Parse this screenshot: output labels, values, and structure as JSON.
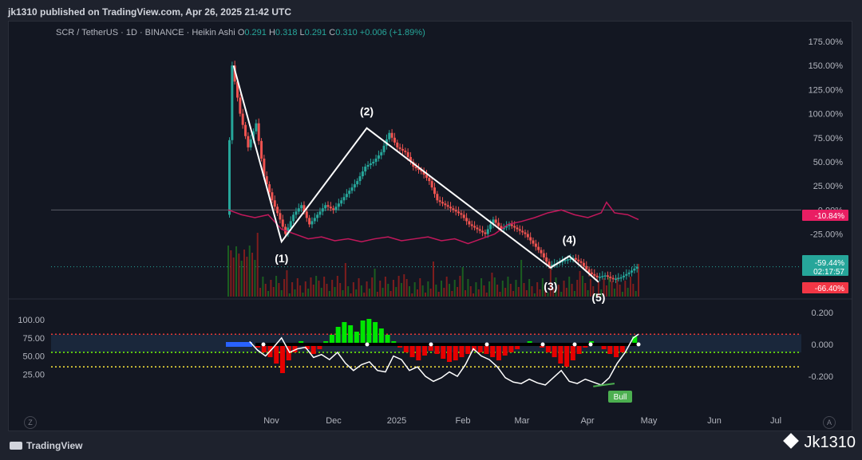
{
  "header": {
    "published": "jk1310 published on TradingView.com, Apr 26, 2025 21:42 UTC"
  },
  "legend": {
    "symbol": "SCR / TetherUS · 1D · BINANCE · Heikin Ashi",
    "o_label": "O",
    "o": "0.291",
    "h_label": "H",
    "h": "0.318",
    "l_label": "L",
    "l": "0.291",
    "c_label": "C",
    "c": "0.310",
    "change": "+0.006 (+1.89%)"
  },
  "footer": {
    "brand": "TradingView",
    "watermark": "Jk1310"
  },
  "corner_buttons": {
    "left": "Z",
    "right": "A"
  },
  "colors": {
    "bull": "#26a69a",
    "bear": "#ef5350",
    "rsi_line": "#ffffff",
    "compare_line": "#c2185b",
    "hist_up": "#00e600",
    "hist_down": "#e60000",
    "price_badge": "#26a69a"
  },
  "chart_data": [
    {
      "type": "line",
      "title": "",
      "style": "heikin-ashi candles with Elliott wave overlay",
      "y_axis": {
        "position": "right",
        "unit": "%",
        "range": [
          -90,
          180
        ],
        "ticks": [
          "175.00%",
          "150.00%",
          "125.00%",
          "100.00%",
          "75.00%",
          "50.00%",
          "25.00%",
          "0.00%",
          "-25.00%",
          "-50.00%"
        ]
      },
      "x_axis": {
        "ticks": [
          "Nov",
          "Dec",
          "2025",
          "Feb",
          "Mar",
          "Apr",
          "May",
          "Jun",
          "Jul"
        ]
      },
      "price_series": {
        "unit": "%",
        "points": [
          [
            0,
            -5
          ],
          [
            2,
            150
          ],
          [
            5,
            100
          ],
          [
            8,
            65
          ],
          [
            11,
            90
          ],
          [
            14,
            35
          ],
          [
            17,
            10
          ],
          [
            20,
            -10
          ],
          [
            22,
            -25
          ],
          [
            25,
            -5
          ],
          [
            28,
            5
          ],
          [
            31,
            -15
          ],
          [
            34,
            -5
          ],
          [
            37,
            5
          ],
          [
            40,
            0
          ],
          [
            43,
            10
          ],
          [
            46,
            20
          ],
          [
            49,
            30
          ],
          [
            52,
            45
          ],
          [
            55,
            50
          ],
          [
            58,
            60
          ],
          [
            61,
            80
          ],
          [
            64,
            65
          ],
          [
            67,
            60
          ],
          [
            70,
            45
          ],
          [
            73,
            40
          ],
          [
            76,
            30
          ],
          [
            79,
            10
          ],
          [
            82,
            5
          ],
          [
            85,
            0
          ],
          [
            88,
            -5
          ],
          [
            91,
            -15
          ],
          [
            94,
            -20
          ],
          [
            97,
            -25
          ],
          [
            100,
            -10
          ],
          [
            103,
            -20
          ],
          [
            106,
            -15
          ],
          [
            109,
            -20
          ],
          [
            112,
            -25
          ],
          [
            115,
            -35
          ],
          [
            118,
            -45
          ],
          [
            121,
            -58
          ],
          [
            124,
            -55
          ],
          [
            127,
            -52
          ],
          [
            130,
            -50
          ],
          [
            133,
            -55
          ],
          [
            136,
            -65
          ],
          [
            139,
            -70
          ],
          [
            142,
            -68
          ],
          [
            145,
            -72
          ],
          [
            148,
            -70
          ],
          [
            151,
            -65
          ],
          [
            154,
            -59
          ]
        ]
      },
      "compare_series": {
        "unit": "%",
        "points": [
          [
            0,
            0
          ],
          [
            5,
            -5
          ],
          [
            10,
            -8
          ],
          [
            15,
            -5
          ],
          [
            20,
            -20
          ],
          [
            25,
            -25
          ],
          [
            30,
            -30
          ],
          [
            35,
            -28
          ],
          [
            40,
            -32
          ],
          [
            45,
            -30
          ],
          [
            50,
            -33
          ],
          [
            55,
            -30
          ],
          [
            60,
            -28
          ],
          [
            65,
            -32
          ],
          [
            70,
            -30
          ],
          [
            75,
            -28
          ],
          [
            80,
            -32
          ],
          [
            85,
            -30
          ],
          [
            90,
            -35
          ],
          [
            95,
            -30
          ],
          [
            100,
            -25
          ],
          [
            105,
            -15
          ],
          [
            110,
            -12
          ],
          [
            115,
            -8
          ],
          [
            120,
            -3
          ],
          [
            125,
            0
          ],
          [
            130,
            -5
          ],
          [
            135,
            -8
          ],
          [
            140,
            -3
          ],
          [
            142,
            8
          ],
          [
            145,
            -3
          ],
          [
            150,
            -5
          ],
          [
            154,
            -10
          ]
        ]
      },
      "elliott_wave": {
        "points": [
          [
            2,
            150
          ],
          [
            20,
            -33
          ],
          [
            52,
            85
          ],
          [
            121,
            -60
          ],
          [
            128,
            -48
          ],
          [
            139,
            -75
          ]
        ],
        "labels": [
          "(1)",
          "(2)",
          "(3)",
          "(4)",
          "(5)"
        ]
      },
      "value_badges": [
        {
          "value": "-10.84%",
          "color": "#e91e63"
        },
        {
          "value": "-59.44%",
          "sub": "02:17:57",
          "color": "#26a69a"
        },
        {
          "value": "-66.40%",
          "color": "#f23645"
        }
      ]
    },
    {
      "type": "line",
      "title": "",
      "style": "oscillator with histogram",
      "left_axis": {
        "ticks": [
          "100.00",
          "75.00",
          "50.00",
          "25.00"
        ],
        "range": [
          0,
          110
        ]
      },
      "right_axis": {
        "ticks": [
          "0.200",
          "0.000",
          "-0.200"
        ],
        "range": [
          -0.3,
          0.2
        ]
      },
      "levels": {
        "upper": 80,
        "middle": 55,
        "lower": 35
      },
      "rsi": {
        "points": [
          [
            8,
            70
          ],
          [
            11,
            58
          ],
          [
            14,
            50
          ],
          [
            17,
            62
          ],
          [
            20,
            75
          ],
          [
            23,
            55
          ],
          [
            26,
            60
          ],
          [
            29,
            62
          ],
          [
            32,
            48
          ],
          [
            35,
            52
          ],
          [
            38,
            45
          ],
          [
            41,
            55
          ],
          [
            44,
            40
          ],
          [
            47,
            30
          ],
          [
            50,
            38
          ],
          [
            53,
            42
          ],
          [
            56,
            30
          ],
          [
            59,
            28
          ],
          [
            62,
            50
          ],
          [
            65,
            45
          ],
          [
            68,
            30
          ],
          [
            71,
            35
          ],
          [
            74,
            22
          ],
          [
            77,
            15
          ],
          [
            80,
            20
          ],
          [
            83,
            28
          ],
          [
            86,
            22
          ],
          [
            89,
            38
          ],
          [
            92,
            60
          ],
          [
            95,
            50
          ],
          [
            98,
            45
          ],
          [
            101,
            35
          ],
          [
            104,
            20
          ],
          [
            107,
            14
          ],
          [
            110,
            12
          ],
          [
            113,
            18
          ],
          [
            116,
            13
          ],
          [
            119,
            10
          ],
          [
            122,
            20
          ],
          [
            125,
            30
          ],
          [
            128,
            15
          ],
          [
            131,
            12
          ],
          [
            134,
            18
          ],
          [
            137,
            14
          ],
          [
            140,
            10
          ],
          [
            143,
            20
          ],
          [
            146,
            40
          ],
          [
            149,
            55
          ],
          [
            152,
            75
          ],
          [
            154,
            80
          ]
        ]
      },
      "histogram": [
        -0.02,
        -0.05,
        -0.08,
        -0.12,
        -0.18,
        -0.1,
        -0.05,
        0.02,
        -0.03,
        -0.06,
        -0.03,
        0.02,
        0.06,
        0.11,
        0.14,
        0.12,
        0.08,
        0.15,
        0.16,
        0.14,
        0.1,
        0.06,
        0.02,
        -0.02,
        -0.05,
        -0.08,
        -0.1,
        -0.07,
        -0.04,
        -0.06,
        -0.09,
        -0.11,
        -0.1,
        -0.08,
        -0.06,
        -0.04,
        -0.05,
        -0.06,
        -0.08,
        -0.1,
        -0.07,
        -0.05,
        -0.03,
        0.01,
        0.02,
        0.01,
        -0.02,
        -0.05,
        -0.08,
        -0.12,
        -0.14,
        -0.1,
        -0.06,
        -0.02,
        0.02,
        0.01,
        -0.03,
        -0.06,
        -0.08,
        -0.05,
        0.01,
        0.05
      ],
      "signal_badge": "Bull"
    }
  ]
}
